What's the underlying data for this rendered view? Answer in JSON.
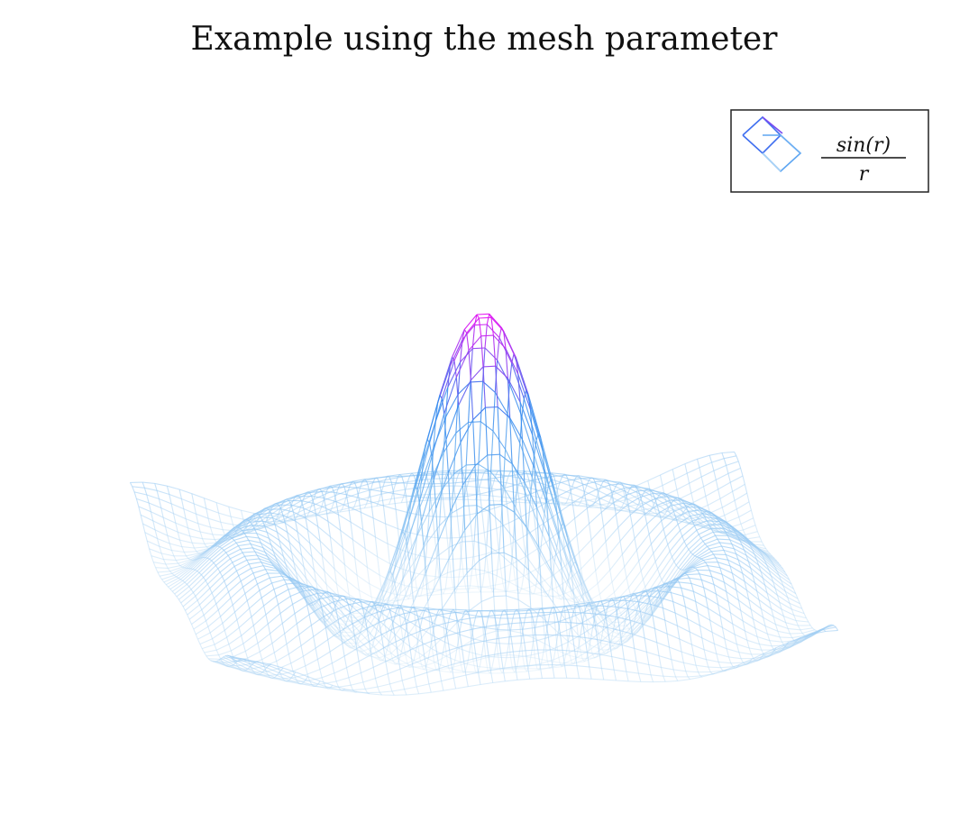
{
  "chart_data": {
    "type": "surface-mesh",
    "title": "Example using the mesh parameter",
    "legend": {
      "placement": "top-right",
      "entries": [
        {
          "label_numerator": "sin(r)",
          "label_denominator": "r",
          "label": "sin(r)/r"
        }
      ]
    },
    "function": "z = sin(r)/r",
    "domain": {
      "x": [
        -10,
        10
      ],
      "y": [
        -10,
        10
      ]
    },
    "zlim": [
      -0.22,
      1.0
    ],
    "grid_lines": 50,
    "axes_visible": false,
    "colors": {
      "low": "#cfe6f7",
      "mid": "#2f86ef",
      "high": "#ec0ef2"
    }
  }
}
